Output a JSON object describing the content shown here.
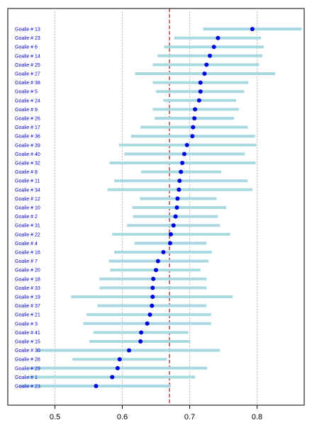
{
  "chart_data": {
    "type": "scatter",
    "subtype": "dot-interval",
    "title": "",
    "xlabel": "",
    "ylabel": "",
    "xlim": [
      0.43,
      0.87
    ],
    "x_ticks": [
      0.5,
      0.6,
      0.7,
      0.8
    ],
    "x_tick_labels": [
      "0.5",
      "0.6",
      "0.7",
      "0.8"
    ],
    "grid": "vertical dotted at x ticks",
    "reference_line": {
      "x": 0.67,
      "style": "dashed",
      "color": "#cc0000"
    },
    "colors": {
      "point": "#0000dd",
      "interval": "#a8d8e0",
      "label": "#0000cc",
      "grid": "#bbbbbb",
      "frame": "#000000"
    },
    "categories": [
      "Goalie # 13",
      "Goalie # 23",
      "Goalie # 6",
      "Goalie # 14",
      "Goalie # 25",
      "Goalie # 27",
      "Goalie # 38",
      "Goalie # 5",
      "Goalie # 24",
      "Goalie # 9",
      "Goalie # 26",
      "Goalie # 17",
      "Goalie # 36",
      "Goalie # 39",
      "Goalie # 40",
      "Goalie # 32",
      "Goalie # 8",
      "Goalie # 11",
      "Goalie # 34",
      "Goalie # 12",
      "Goalie # 10",
      "Goalie # 2",
      "Goalie # 31",
      "Goalie # 22",
      "Goalie # 4",
      "Goalie # 16",
      "Goalie # 7",
      "Goalie # 20",
      "Goalie # 18",
      "Goalie # 33",
      "Goalie # 19",
      "Goalie # 37",
      "Goalie # 21",
      "Goalie # 3",
      "Goalie # 41",
      "Goalie # 15",
      "Goalie # 30",
      "Goalie # 28",
      "Goalie # 29",
      "Goalie # 1",
      "Goalie # 23"
    ],
    "point": [
      0.793,
      0.742,
      0.736,
      0.73,
      0.725,
      0.722,
      0.716,
      0.716,
      0.714,
      0.708,
      0.707,
      0.705,
      0.704,
      0.696,
      0.692,
      0.689,
      0.687,
      0.685,
      0.684,
      0.682,
      0.681,
      0.679,
      0.676,
      0.672,
      0.671,
      0.661,
      0.653,
      0.65,
      0.646,
      0.645,
      0.645,
      0.644,
      0.641,
      0.637,
      0.628,
      0.627,
      0.61,
      0.596,
      0.593,
      0.585,
      0.561
    ],
    "lower": [
      0.72,
      0.677,
      0.662,
      0.652,
      0.645,
      0.619,
      0.645,
      0.65,
      0.661,
      0.645,
      0.648,
      0.627,
      0.613,
      0.595,
      0.603,
      0.581,
      0.628,
      0.588,
      0.578,
      0.626,
      0.615,
      0.616,
      0.607,
      0.585,
      0.618,
      0.588,
      0.58,
      0.582,
      0.566,
      0.566,
      0.524,
      0.563,
      0.547,
      0.542,
      0.557,
      0.551,
      0.473,
      0.526,
      0.46,
      0.46,
      0.447
    ],
    "upper": [
      0.866,
      0.806,
      0.81,
      0.808,
      0.803,
      0.827,
      0.787,
      0.781,
      0.769,
      0.773,
      0.766,
      0.786,
      0.797,
      0.799,
      0.782,
      0.798,
      0.747,
      0.786,
      0.793,
      0.74,
      0.754,
      0.742,
      0.745,
      0.76,
      0.725,
      0.733,
      0.728,
      0.716,
      0.725,
      0.725,
      0.764,
      0.725,
      0.732,
      0.732,
      0.698,
      0.701,
      0.745,
      0.666,
      0.726,
      0.708,
      0.672
    ]
  }
}
